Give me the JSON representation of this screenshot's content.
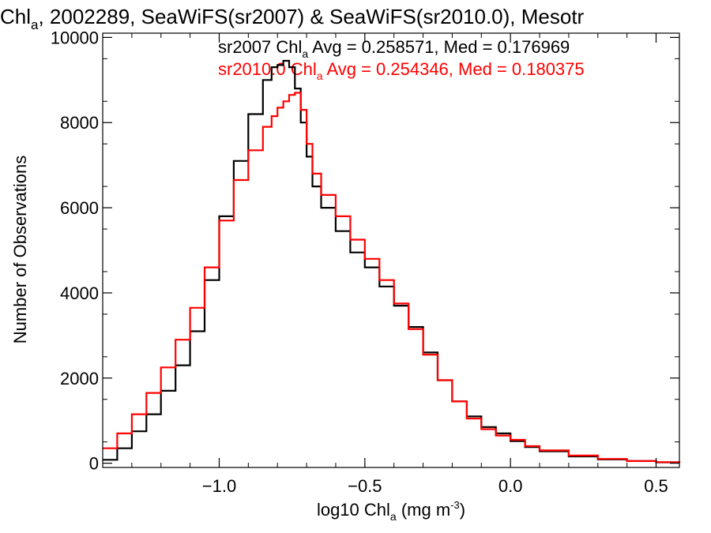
{
  "chart_data": {
    "type": "line",
    "title_main": "Chl",
    "title_sub": "a",
    "title_rest": ", 2002289, SeaWiFS(sr2007) & SeaWiFS(sr2010.0), Mesotr",
    "xlabel_pre": "log10 Chl",
    "xlabel_sub": "a",
    "xlabel_mid": " (mg m",
    "xlabel_sup": "-3",
    "xlabel_post": ")",
    "ylabel": "Number of Observations",
    "xlim": [
      -1.4,
      0.58
    ],
    "ylim": [
      -100,
      10100
    ],
    "xticks": [
      -1.0,
      -0.5,
      0.0,
      0.5
    ],
    "xtick_labels": [
      "−1.0",
      "−0.5",
      "0.0",
      "0.5"
    ],
    "yticks": [
      0,
      2000,
      4000,
      6000,
      8000,
      10000
    ],
    "ytick_labels": [
      "0",
      "2000",
      "4000",
      "6000",
      "8000",
      "10000"
    ],
    "legend_placement": "top-center",
    "series": [
      {
        "name": "sr2007",
        "color": "#000000",
        "legend_pre": "sr2007 Chl",
        "legend_sub": "a",
        "legend_post": " Avg = 0.258571, Med = 0.176969",
        "x": [
          -1.4,
          -1.35,
          -1.3,
          -1.25,
          -1.2,
          -1.15,
          -1.1,
          -1.05,
          -1.0,
          -0.95,
          -0.9,
          -0.85,
          -0.82,
          -0.8,
          -0.78,
          -0.76,
          -0.74,
          -0.72,
          -0.7,
          -0.68,
          -0.65,
          -0.6,
          -0.55,
          -0.5,
          -0.45,
          -0.4,
          -0.35,
          -0.3,
          -0.25,
          -0.2,
          -0.15,
          -0.1,
          -0.05,
          0.0,
          0.05,
          0.1,
          0.2,
          0.3,
          0.4,
          0.5,
          0.58
        ],
        "y": [
          80,
          350,
          750,
          1150,
          1700,
          2300,
          3100,
          4300,
          5800,
          7100,
          8200,
          9000,
          9300,
          9350,
          9450,
          9300,
          8800,
          8000,
          7200,
          6500,
          6000,
          5450,
          4950,
          4600,
          4150,
          3700,
          3200,
          2600,
          1950,
          1450,
          1100,
          850,
          700,
          520,
          380,
          280,
          160,
          90,
          50,
          20,
          10
        ]
      },
      {
        "name": "sr2010.0",
        "color": "#ff0000",
        "legend_pre": "sr2010.0 Chl",
        "legend_sub": "a",
        "legend_post": " Avg = 0.254346, Med = 0.180375",
        "x": [
          -1.4,
          -1.35,
          -1.3,
          -1.25,
          -1.2,
          -1.15,
          -1.1,
          -1.05,
          -1.0,
          -0.95,
          -0.9,
          -0.85,
          -0.82,
          -0.8,
          -0.78,
          -0.76,
          -0.74,
          -0.72,
          -0.7,
          -0.68,
          -0.65,
          -0.6,
          -0.55,
          -0.5,
          -0.45,
          -0.4,
          -0.35,
          -0.3,
          -0.25,
          -0.2,
          -0.15,
          -0.1,
          -0.05,
          0.0,
          0.05,
          0.1,
          0.2,
          0.3,
          0.4,
          0.5,
          0.58
        ],
        "y": [
          350,
          700,
          1150,
          1650,
          2250,
          2900,
          3650,
          4600,
          5700,
          6650,
          7350,
          7900,
          8150,
          8350,
          8500,
          8650,
          8700,
          8300,
          7500,
          6800,
          6300,
          5800,
          5250,
          4800,
          4300,
          3750,
          3150,
          2550,
          1950,
          1450,
          1050,
          800,
          650,
          550,
          400,
          300,
          180,
          100,
          50,
          25,
          10
        ]
      }
    ]
  }
}
